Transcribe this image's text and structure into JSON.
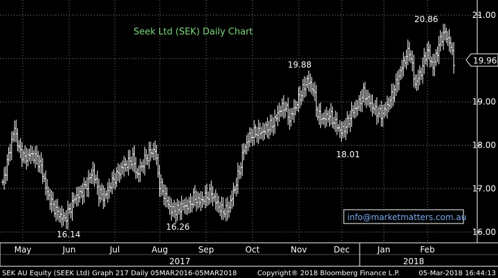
{
  "chart_data": {
    "type": "ohlc",
    "title": "Seek Ltd (SEK) Daily Chart",
    "watermark": "info@marketmatters.com.au",
    "last_price": "19.96",
    "ylim": [
      15.75,
      21.35
    ],
    "y_ticks": [
      {
        "value": 16,
        "label": "16.00"
      },
      {
        "value": 17,
        "label": "17.00"
      },
      {
        "value": 18,
        "label": "18.00"
      },
      {
        "value": 19,
        "label": "19.00"
      },
      {
        "value": 20,
        "label": "20.00"
      },
      {
        "value": 21,
        "label": "21.00"
      }
    ],
    "x_months": [
      "May",
      "Jun",
      "Jul",
      "Aug",
      "Sep",
      "Oct",
      "Nov",
      "Dec",
      "Jan",
      "Feb"
    ],
    "x_years": [
      "2017",
      "2018"
    ],
    "annotations": [
      "16.14",
      "16.26",
      "19.88",
      "18.01",
      "20.86"
    ],
    "series_anchors": [
      [
        0,
        17.1
      ],
      [
        3,
        17.6
      ],
      [
        6,
        18.1
      ],
      [
        8,
        18.4
      ],
      [
        11,
        17.9
      ],
      [
        15,
        17.7
      ],
      [
        19,
        17.8
      ],
      [
        23,
        17.7
      ],
      [
        26,
        17.5
      ],
      [
        30,
        16.9
      ],
      [
        34,
        16.6
      ],
      [
        38,
        16.4
      ],
      [
        42,
        16.3
      ],
      [
        45,
        16.5
      ],
      [
        49,
        16.8
      ],
      [
        53,
        16.9
      ],
      [
        57,
        17.1
      ],
      [
        61,
        17.4
      ],
      [
        65,
        16.9
      ],
      [
        69,
        16.8
      ],
      [
        73,
        17.1
      ],
      [
        77,
        17.3
      ],
      [
        81,
        17.5
      ],
      [
        85,
        17.6
      ],
      [
        88,
        17.7
      ],
      [
        91,
        17.3
      ],
      [
        95,
        17.6
      ],
      [
        99,
        17.8
      ],
      [
        103,
        17.9
      ],
      [
        106,
        17.1
      ],
      [
        110,
        16.8
      ],
      [
        114,
        16.5
      ],
      [
        118,
        16.5
      ],
      [
        122,
        16.6
      ],
      [
        126,
        16.6
      ],
      [
        129,
        16.8
      ],
      [
        133,
        16.7
      ],
      [
        137,
        16.8
      ],
      [
        141,
        16.9
      ],
      [
        144,
        16.7
      ],
      [
        148,
        16.5
      ],
      [
        152,
        16.5
      ],
      [
        156,
        16.9
      ],
      [
        160,
        17.4
      ],
      [
        163,
        17.9
      ],
      [
        167,
        18.2
      ],
      [
        171,
        18.3
      ],
      [
        175,
        18.3
      ],
      [
        179,
        18.4
      ],
      [
        183,
        18.5
      ],
      [
        187,
        18.8
      ],
      [
        191,
        18.9
      ],
      [
        194,
        18.6
      ],
      [
        198,
        18.9
      ],
      [
        202,
        19.2
      ],
      [
        206,
        19.5
      ],
      [
        210,
        19.3
      ],
      [
        213,
        18.7
      ],
      [
        217,
        18.6
      ],
      [
        221,
        18.7
      ],
      [
        225,
        18.5
      ],
      [
        229,
        18.3
      ],
      [
        233,
        18.5
      ],
      [
        237,
        18.8
      ],
      [
        240,
        18.9
      ],
      [
        244,
        19.2
      ],
      [
        248,
        19.0
      ],
      [
        252,
        18.8
      ],
      [
        256,
        18.7
      ],
      [
        260,
        18.9
      ],
      [
        264,
        19.2
      ],
      [
        268,
        19.6
      ],
      [
        271,
        19.9
      ],
      [
        275,
        20.2
      ],
      [
        279,
        19.4
      ],
      [
        283,
        19.7
      ],
      [
        287,
        20.2
      ],
      [
        291,
        19.8
      ],
      [
        295,
        20.3
      ],
      [
        298,
        20.6
      ],
      [
        302,
        20.4
      ],
      [
        305,
        19.96
      ]
    ]
  }
}
